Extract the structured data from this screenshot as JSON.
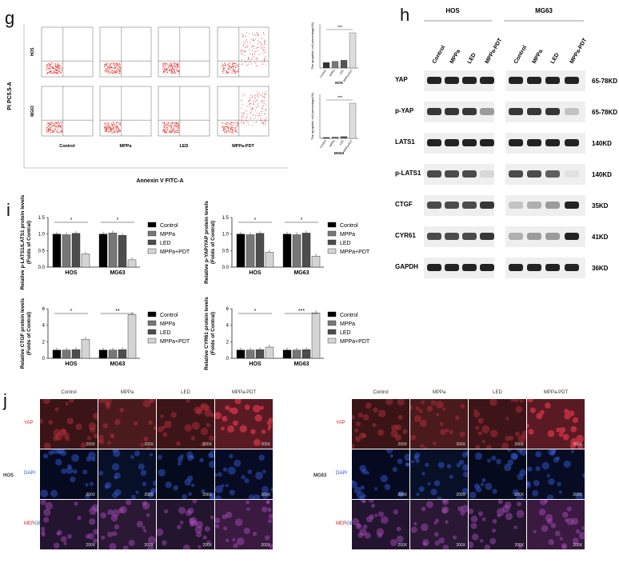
{
  "panel_g": {
    "letter": "g",
    "y_axis": "PI PC5.5-A",
    "x_axis": "Annexin  V FITC-A",
    "rows": [
      "HOS",
      "MG63"
    ],
    "columns": [
      "Control",
      "MPPa",
      "LED",
      "MPPa-PDT"
    ],
    "bar_charts": [
      {
        "ylabel": "The apoptotic cell percentage(%)",
        "xlabel": "HOS",
        "categories": [
          "Control",
          "MPPa",
          "LED",
          "MPPa-PDT"
        ],
        "values": [
          5,
          6,
          7,
          32
        ],
        "sig": "***",
        "ylim": [
          0,
          40
        ]
      },
      {
        "ylabel": "The apoptotic cell percentage(%)",
        "xlabel": "MG63",
        "categories": [
          "Control",
          "MPPa",
          "LED",
          "MPPa-PDT"
        ],
        "values": [
          1,
          1.5,
          2,
          40
        ],
        "sig": "***",
        "ylim": [
          0,
          50
        ]
      }
    ]
  },
  "panel_h": {
    "letter": "h",
    "groups": [
      "HOS",
      "MG63"
    ],
    "lanes": [
      "Control",
      "MPPa",
      "LED",
      "MPPa-PDT"
    ],
    "bands": [
      {
        "name": "YAP",
        "kd": "65-78KD"
      },
      {
        "name": "p-YAP",
        "kd": "65-78KD"
      },
      {
        "name": "LATS1",
        "kd": "140KD"
      },
      {
        "name": "p-LATS1",
        "kd": "140KD"
      },
      {
        "name": "CTGF",
        "kd": "35KD"
      },
      {
        "name": "CYR61",
        "kd": "41KD"
      },
      {
        "name": "GAPDH",
        "kd": "36KD"
      }
    ]
  },
  "panel_i": {
    "letter": "i",
    "legend": [
      "Control",
      "MPPa",
      "LED",
      "MPPa+PDT"
    ],
    "colors": [
      "#000000",
      "#777777",
      "#4d4d4d",
      "#d4d4d4"
    ]
  },
  "chart_data": [
    {
      "type": "bar",
      "ylabel": "Relative p-LATS1/LATS1 protein levels (Folds of Contral)",
      "categories": [
        "HOS",
        "MG63"
      ],
      "series": [
        {
          "name": "Control",
          "values": [
            1.0,
            1.0
          ]
        },
        {
          "name": "MPPa",
          "values": [
            0.98,
            1.03
          ]
        },
        {
          "name": "LED",
          "values": [
            1.02,
            0.96
          ]
        },
        {
          "name": "MPPa+PDT",
          "values": [
            0.4,
            0.22
          ]
        }
      ],
      "ylim": [
        0,
        1.5
      ],
      "yticks": [
        "0.0",
        "0.5",
        "1.0",
        "1.5"
      ],
      "sig": [
        "*",
        "*"
      ]
    },
    {
      "type": "bar",
      "ylabel": "Relative p-YAP/YAP protein levels (Folds of Contral)",
      "categories": [
        "HOS",
        "MG63"
      ],
      "series": [
        {
          "name": "Control",
          "values": [
            1.0,
            1.0
          ]
        },
        {
          "name": "MPPa",
          "values": [
            0.98,
            0.98
          ]
        },
        {
          "name": "LED",
          "values": [
            1.02,
            1.03
          ]
        },
        {
          "name": "MPPa+PDT",
          "values": [
            0.45,
            0.33
          ]
        }
      ],
      "ylim": [
        0,
        1.5
      ],
      "yticks": [
        "0.0",
        "0.5",
        "1.0",
        "1.5"
      ],
      "sig": [
        "*",
        "*"
      ]
    },
    {
      "type": "bar",
      "ylabel": "Relative CTGF protein levels (Folds of Contral)",
      "categories": [
        "HOS",
        "MG63"
      ],
      "series": [
        {
          "name": "Control",
          "values": [
            1.0,
            1.0
          ]
        },
        {
          "name": "MPPa",
          "values": [
            1.0,
            1.0
          ]
        },
        {
          "name": "LED",
          "values": [
            1.05,
            1.05
          ]
        },
        {
          "name": "MPPa+PDT",
          "values": [
            2.3,
            5.3
          ]
        }
      ],
      "ylim": [
        0,
        6
      ],
      "yticks": [
        "0",
        "2",
        "4",
        "6"
      ],
      "sig": [
        "*",
        "**"
      ]
    },
    {
      "type": "bar",
      "ylabel": "Relative CYR61 protein levels (Folds of Contral)",
      "categories": [
        "HOS",
        "MG63"
      ],
      "series": [
        {
          "name": "Control",
          "values": [
            1.0,
            1.0
          ]
        },
        {
          "name": "MPPa",
          "values": [
            1.0,
            1.0
          ]
        },
        {
          "name": "LED",
          "values": [
            1.05,
            1.05
          ]
        },
        {
          "name": "MPPa+PDT",
          "values": [
            1.35,
            5.5
          ]
        }
      ],
      "ylim": [
        0,
        6
      ],
      "yticks": [
        "0",
        "2",
        "4",
        "6"
      ],
      "sig": [
        "*",
        "***"
      ]
    }
  ],
  "panel_j": {
    "letter": "j",
    "columns": [
      "Control",
      "MPPa",
      "LED",
      "MPPa-PDT"
    ],
    "rows": [
      "YAP",
      "DAPI",
      "MERGED"
    ],
    "merged_parts": [
      "MER",
      "GED"
    ],
    "groups": [
      "HOS",
      "MG63"
    ],
    "magnification": "200X"
  }
}
